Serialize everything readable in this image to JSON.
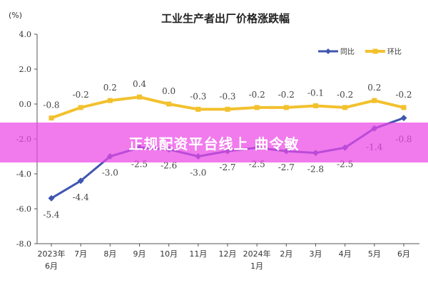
{
  "chart_data": {
    "type": "line",
    "title": "工业生产者出厂价格涨跌幅",
    "unit_label": "(%)",
    "ylim": [
      -8.0,
      4.0
    ],
    "y_ticks": [
      "4.0",
      "2.0",
      "0.0",
      "-2.0",
      "-4.0",
      "-6.0",
      "-8.0"
    ],
    "y_tick_values": [
      4.0,
      2.0,
      0.0,
      -2.0,
      -4.0,
      -6.0,
      -8.0
    ],
    "categories": [
      [
        "2023年",
        "6月"
      ],
      [
        "7月"
      ],
      [
        "8月"
      ],
      [
        "9月"
      ],
      [
        "10月"
      ],
      [
        "11月"
      ],
      [
        "12月"
      ],
      [
        "2024年",
        "1月"
      ],
      [
        "2月"
      ],
      [
        "3月"
      ],
      [
        "4月"
      ],
      [
        "5月"
      ],
      [
        "6月"
      ]
    ],
    "series": [
      {
        "name": "同比",
        "color": "#3f56b0",
        "values": [
          -5.4,
          -4.4,
          -3.0,
          -2.5,
          -2.6,
          -3.0,
          -2.7,
          -2.5,
          -2.7,
          -2.8,
          -2.5,
          -1.4,
          -0.8
        ],
        "labels": [
          "-5.4",
          "-4.4",
          "-3.0",
          "-2.5",
          "-2.6",
          "-3.0",
          "-2.7",
          "-2.5",
          "-2.7",
          "-2.8",
          "-2.5",
          "-1.4",
          "-0.8"
        ]
      },
      {
        "name": "环比",
        "color": "#f2c12e",
        "values": [
          -0.8,
          -0.2,
          0.2,
          0.4,
          0.0,
          -0.3,
          -0.3,
          -0.2,
          -0.2,
          -0.1,
          -0.2,
          0.2,
          -0.2
        ],
        "labels": [
          "-0.8",
          "-0.2",
          "0.2",
          "0.4",
          "0.0",
          "-0.3",
          "-0.3",
          "-0.2",
          "-0.2",
          "-0.1",
          "-0.2",
          "0.2",
          "-0.2"
        ]
      }
    ],
    "legend_position": "top-right",
    "grid": false
  },
  "overlay": {
    "text": "正规配资平台线上 曲令敏",
    "color": "#ec46e6"
  }
}
